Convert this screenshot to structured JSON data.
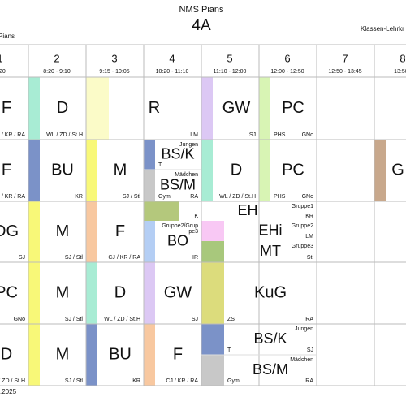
{
  "header": {
    "school": "NMS Pians",
    "class": "4A",
    "teacher_label": "Klassen-Lehrkr",
    "school_short": "Pians"
  },
  "periods": [
    {
      "number": "1",
      "time": "8:20"
    },
    {
      "number": "2",
      "time": "8:20 - 9:10"
    },
    {
      "number": "3",
      "time": "9:15 - 10:05"
    },
    {
      "number": "4",
      "time": "10:20 - 11:10"
    },
    {
      "number": "5",
      "time": "11:10 - 12:00"
    },
    {
      "number": "6",
      "time": "12:00 - 12:50"
    },
    {
      "number": "7",
      "time": "12:50 - 13:45"
    },
    {
      "number": "8",
      "time": "13:50 -"
    }
  ],
  "rows": [
    [
      {
        "subject": "F",
        "teacher": "/ KR / RA"
      },
      {
        "subject": "D",
        "teacher": "WL / ZD / St.H"
      },
      {
        "subject": "R",
        "teacher": "LM"
      },
      {
        "subject": "GW",
        "teacher": "SJ"
      },
      {
        "subject": "PC",
        "room": "PHS",
        "teacher": "GNo"
      }
    ],
    [
      {
        "subject": "F",
        "teacher": "/ KR / RA"
      },
      {
        "subject": "BU",
        "teacher": "KR"
      },
      {
        "subject": "M",
        "teacher": "SJ / Stl"
      },
      {
        "subject": "BS/K",
        "group": [
          "Jungen"
        ],
        "room": "T"
      },
      {
        "subject": "BS/M",
        "group": [
          "Mädchen"
        ],
        "room": "Gym",
        "teacher": "RA"
      },
      {
        "subject": "D",
        "teacher": "WL / ZD / St.H"
      },
      {
        "subject": "PC",
        "room": "PHS",
        "teacher": "GNo"
      },
      {
        "subject": "G"
      }
    ],
    [
      {
        "subject": "DG",
        "teacher": "SJ"
      },
      {
        "subject": "M",
        "teacher": "SJ / Stl"
      },
      {
        "subject": "F",
        "teacher": "CJ / KR / RA"
      },
      {
        "teacher": "K"
      },
      {
        "subject": "BO",
        "group": [
          "Gruppe2/Grup",
          "pe3"
        ],
        "teacher": "IR"
      },
      {
        "subject": "EH",
        "group": [
          "Gruppe1"
        ],
        "teacher": "KR"
      },
      {
        "subject": "EHi",
        "group": [
          "Gruppe2"
        ],
        "teacher": "LM"
      },
      {
        "subject": "MT",
        "group": [
          "Gruppe3"
        ],
        "teacher": "Stl"
      }
    ],
    [
      {
        "subject": "PC",
        "teacher": "GNo"
      },
      {
        "subject": "M",
        "teacher": "SJ / Stl"
      },
      {
        "subject": "D",
        "teacher": "WL / ZD / St.H"
      },
      {
        "subject": "GW",
        "teacher": "SJ"
      },
      {
        "subject": "KuG",
        "room": "ZS",
        "teacher": "RA"
      }
    ],
    [
      {
        "subject": "D",
        "teacher": "/ ZD / St.H"
      },
      {
        "subject": "M",
        "teacher": "SJ / Stl"
      },
      {
        "subject": "BU",
        "teacher": "KR"
      },
      {
        "subject": "F",
        "teacher": "CJ / KR / RA"
      },
      {
        "subject": "BS/K",
        "group": [
          "Jungen"
        ],
        "room": "T",
        "teacher": "SJ"
      },
      {
        "subject": "BS/M",
        "group": [
          "Mädchen"
        ],
        "room": "Gym",
        "teacher": "RA"
      }
    ]
  ],
  "footer": ".2025"
}
